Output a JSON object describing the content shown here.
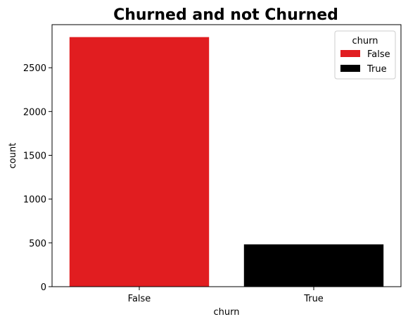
{
  "chart_data": {
    "type": "bar",
    "title": "Churned and not Churned",
    "xlabel": "churn",
    "ylabel": "count",
    "categories": [
      "False",
      "True"
    ],
    "values": [
      2850,
      483
    ],
    "colors": [
      "#e11d20",
      "#000000"
    ],
    "ylim": [
      0,
      2992
    ],
    "yticks": [
      0,
      500,
      1000,
      1500,
      2000,
      2500
    ],
    "grid": false,
    "legend": {
      "title": "churn",
      "placement": "top-right",
      "entries": [
        "False",
        "True"
      ]
    }
  }
}
